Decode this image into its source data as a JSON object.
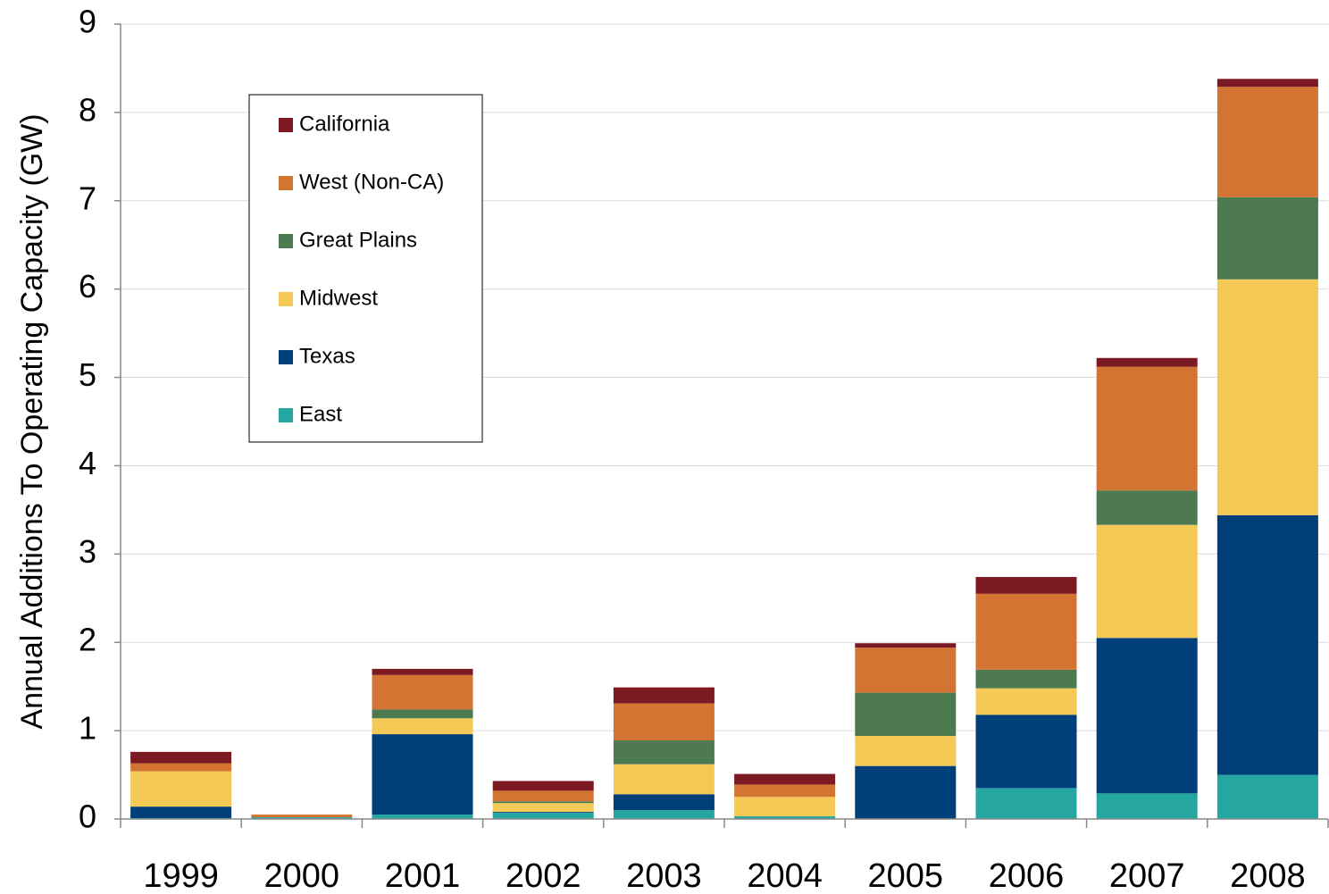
{
  "chart_data": {
    "type": "stacked_bar",
    "y_label": "Annual Additions To Operating Capacity (GW)",
    "categories": [
      "1999",
      "2000",
      "2001",
      "2002",
      "2003",
      "2004",
      "2005",
      "2006",
      "2007",
      "2008"
    ],
    "series": [
      {
        "name": "East",
        "color": "#26a6a0",
        "values": [
          0.01,
          0.02,
          0.05,
          0.07,
          0.1,
          0.03,
          0,
          0.35,
          0.29,
          0.5
        ]
      },
      {
        "name": "Texas",
        "color": "#003f7a",
        "values": [
          0.13,
          0,
          0.91,
          0.01,
          0.18,
          0,
          0.6,
          0.83,
          1.76,
          2.94
        ]
      },
      {
        "name": "Midwest",
        "color": "#f4c955",
        "values": [
          0.4,
          0,
          0.18,
          0.1,
          0.34,
          0.22,
          0.34,
          0.3,
          1.28,
          2.67
        ]
      },
      {
        "name": "Great Plains",
        "color": "#4e7a52",
        "values": [
          0,
          0,
          0.1,
          0.02,
          0.27,
          0,
          0.49,
          0.21,
          0.39,
          0.93
        ]
      },
      {
        "name": "West (Non-CA)",
        "color": "#d37433",
        "values": [
          0.09,
          0.03,
          0.39,
          0.12,
          0.42,
          0.14,
          0.51,
          0.86,
          1.4,
          1.25
        ]
      },
      {
        "name": "California",
        "color": "#7b1a22",
        "values": [
          0.13,
          0,
          0.07,
          0.11,
          0.18,
          0.12,
          0.05,
          0.19,
          0.1,
          0.09
        ]
      }
    ],
    "ylim": [
      0,
      9
    ],
    "yticks": [
      0,
      1,
      2,
      3,
      4,
      5,
      6,
      7,
      8,
      9
    ],
    "grid": true,
    "legend": "upper left"
  }
}
